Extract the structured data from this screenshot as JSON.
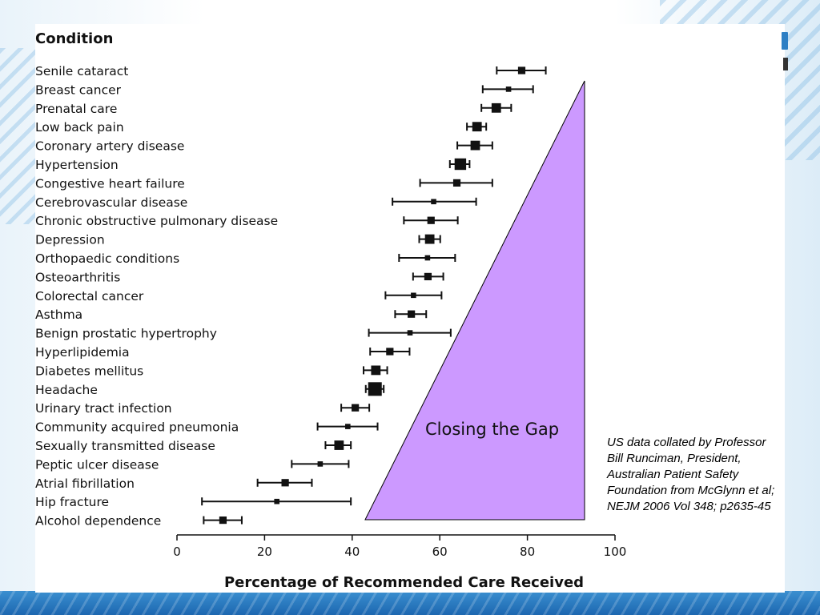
{
  "chart_data": {
    "type": "scatter",
    "ylabel": "Condition",
    "xlabel": "Percentage of Recommended Care Received",
    "xlim": [
      0,
      100
    ],
    "xticks": [
      "0",
      "20",
      "40",
      "60",
      "80",
      "100"
    ],
    "categories": [
      "Senile cataract",
      "Breast cancer",
      "Prenatal care",
      "Low back pain",
      "Coronary artery disease",
      "Hypertension",
      "Congestive heart failure",
      "Cerebrovascular disease",
      "Chronic obstructive pulmonary disease",
      "Depression",
      "Orthopaedic conditions",
      "Osteoarthritis",
      "Colorectal cancer",
      "Asthma",
      "Benign prostatic hypertrophy",
      "Hyperlipidemia",
      "Diabetes mellitus",
      "Headache",
      "Urinary tract infection",
      "Community acquired pneumonia",
      "Sexually transmitted disease",
      "Peptic ulcer disease",
      "Atrial fibrillation",
      "Hip fracture",
      "Alcohol dependence"
    ],
    "values": [
      78.7,
      75.7,
      72.9,
      68.5,
      68.1,
      64.7,
      63.9,
      58.6,
      58.0,
      57.7,
      57.2,
      57.3,
      54.0,
      53.5,
      53.2,
      48.6,
      45.4,
      45.2,
      40.7,
      39.0,
      37.0,
      32.7,
      24.7,
      22.8,
      10.5
    ],
    "ci_low": [
      73.0,
      69.8,
      69.5,
      66.2,
      64.0,
      62.3,
      55.5,
      49.2,
      51.8,
      55.3,
      50.7,
      53.9,
      47.6,
      49.8,
      43.8,
      44.1,
      42.6,
      43.1,
      37.5,
      32.1,
      33.9,
      26.2,
      18.4,
      5.7,
      6.1
    ],
    "ci_high": [
      84.2,
      81.3,
      76.3,
      70.6,
      72.0,
      66.8,
      72.0,
      68.3,
      64.1,
      60.1,
      63.5,
      60.8,
      60.4,
      56.9,
      62.5,
      53.1,
      48.0,
      47.2,
      43.9,
      45.8,
      39.7,
      39.2,
      30.8,
      39.7,
      14.8
    ],
    "marker_weight": [
      2,
      1,
      3,
      3,
      3,
      4,
      2,
      1,
      2,
      3,
      1,
      2,
      1,
      2,
      1,
      2,
      3,
      5,
      2,
      1,
      3,
      1,
      2,
      1,
      2
    ],
    "annotation": "Closing the Gap",
    "annotation_color": "#cc99ff",
    "marker_color": "#111111"
  },
  "note": {
    "lines": [
      "US data collated by Professor",
      "Bill Runciman, President,",
      "Australian Patient Safety",
      "Foundation from McGlynn et al;",
      "NEJM 2006 Vol 348; p2635-45"
    ]
  }
}
